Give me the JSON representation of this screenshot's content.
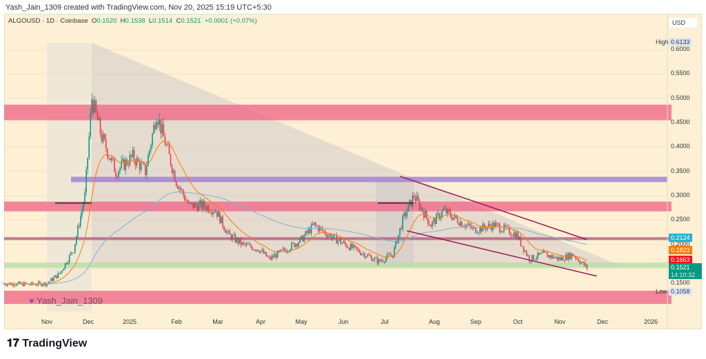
{
  "header": {
    "credit": "Yash_Jain_1309 created with TradingView.com, Nov 20, 2025 15:19 UTC+5:30"
  },
  "legend": {
    "symbol": "ALGOUSD · 1D · Coinbase",
    "o_label": "O",
    "o": "0.1520",
    "h_label": "H",
    "h": "0.1538",
    "l_label": "L",
    "l": "0.1514",
    "c_label": "C",
    "c": "0.1521",
    "change": "+0.0001 (+0.07%)"
  },
  "axis": {
    "currency": "USD",
    "ticks": [
      "0.6000",
      "0.5500",
      "0.5000",
      "0.4500",
      "0.4000",
      "0.3500",
      "0.3000",
      "0.2500",
      "0.2000",
      "0.1500"
    ],
    "high_label": "High",
    "high": "0.6133",
    "low_label": "Low",
    "low": "0.1058",
    "tags": [
      {
        "value": "0.2124",
        "color": "#22b5d0"
      },
      {
        "value": "0.1823",
        "color": "#f57c00"
      },
      {
        "value": "0.1663",
        "color": "#f0141e"
      }
    ],
    "last_price": "0.1521",
    "countdown": "14:10:32",
    "last_color": "#089981"
  },
  "xaxis": {
    "labels": [
      "Nov",
      "Dec",
      "2025",
      "Feb",
      "Mar",
      "Apr",
      "May",
      "Jun",
      "Jul",
      "Aug",
      "Sep",
      "Oct",
      "Nov",
      "Dec",
      "2026"
    ]
  },
  "watermark": "Yash_Jain_1309",
  "footer": {
    "brand": "TradingView"
  },
  "chart_data": {
    "type": "candlestick",
    "title": "ALGOUSD 1D Coinbase",
    "ylabel": "USD",
    "ylim": [
      0.09,
      0.64
    ],
    "x_range": [
      "2024-10-01",
      "2026-01-05"
    ],
    "approx_closes": [
      [
        "2024-10-01",
        0.12
      ],
      [
        "2024-10-20",
        0.118
      ],
      [
        "2024-11-01",
        0.12
      ],
      [
        "2024-11-10",
        0.14
      ],
      [
        "2024-11-20",
        0.19
      ],
      [
        "2024-11-28",
        0.3
      ],
      [
        "2024-12-03",
        0.5
      ],
      [
        "2024-12-10",
        0.42
      ],
      [
        "2024-12-20",
        0.35
      ],
      [
        "2025-01-01",
        0.38
      ],
      [
        "2025-01-10",
        0.35
      ],
      [
        "2025-01-18",
        0.47
      ],
      [
        "2025-01-25",
        0.4
      ],
      [
        "2025-02-01",
        0.33
      ],
      [
        "2025-02-10",
        0.28
      ],
      [
        "2025-02-20",
        0.28
      ],
      [
        "2025-03-01",
        0.27
      ],
      [
        "2025-03-10",
        0.22
      ],
      [
        "2025-03-20",
        0.2
      ],
      [
        "2025-04-01",
        0.19
      ],
      [
        "2025-04-08",
        0.17
      ],
      [
        "2025-04-20",
        0.19
      ],
      [
        "2025-05-01",
        0.21
      ],
      [
        "2025-05-10",
        0.24
      ],
      [
        "2025-05-20",
        0.22
      ],
      [
        "2025-06-01",
        0.2
      ],
      [
        "2025-06-15",
        0.18
      ],
      [
        "2025-06-25",
        0.165
      ],
      [
        "2025-07-05",
        0.18
      ],
      [
        "2025-07-12",
        0.25
      ],
      [
        "2025-07-20",
        0.3
      ],
      [
        "2025-08-01",
        0.24
      ],
      [
        "2025-08-10",
        0.27
      ],
      [
        "2025-08-20",
        0.25
      ],
      [
        "2025-09-01",
        0.23
      ],
      [
        "2025-09-15",
        0.24
      ],
      [
        "2025-10-01",
        0.22
      ],
      [
        "2025-10-10",
        0.17
      ],
      [
        "2025-10-20",
        0.18
      ],
      [
        "2025-11-01",
        0.17
      ],
      [
        "2025-11-10",
        0.18
      ],
      [
        "2025-11-20",
        0.1521
      ]
    ],
    "zones": [
      {
        "from": 0.455,
        "to": 0.487,
        "color": "#f06a8a"
      },
      {
        "from": 0.328,
        "to": 0.339,
        "color": "#9c7fd0"
      },
      {
        "from": 0.268,
        "to": 0.288,
        "color": "#f06a8a"
      },
      {
        "from": 0.209,
        "to": 0.215,
        "color": "#b0607e"
      },
      {
        "from": 0.152,
        "to": 0.163,
        "color": "#b9dfa6"
      },
      {
        "from": 0.078,
        "to": 0.105,
        "color": "#f06a8a"
      }
    ],
    "wedge": [
      [
        [
          "2025-07-10",
          0.34
        ],
        [
          "2025-11-20",
          0.21
        ]
      ],
      [
        [
          "2025-07-15",
          0.228
        ],
        [
          "2025-11-27",
          0.135
        ]
      ]
    ],
    "high": 0.6133,
    "low": 0.1058
  }
}
